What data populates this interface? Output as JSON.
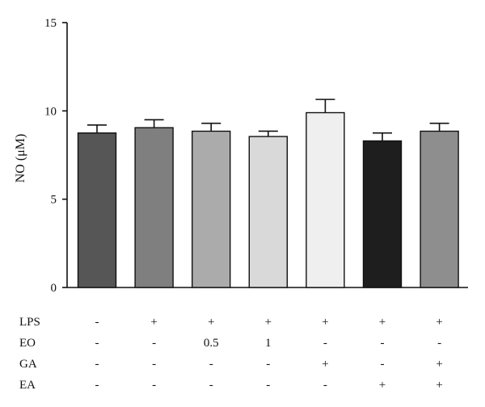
{
  "chart_data": {
    "type": "bar",
    "ylabel": "NO (μM)",
    "ylim": [
      0,
      15
    ],
    "yticks": [
      0,
      5,
      10,
      15
    ],
    "grid": false,
    "bars": [
      {
        "value": 8.75,
        "error": 0.45,
        "color": "#565656"
      },
      {
        "value": 9.05,
        "error": 0.45,
        "color": "#7f7f7f"
      },
      {
        "value": 8.85,
        "error": 0.45,
        "color": "#ababab"
      },
      {
        "value": 8.55,
        "error": 0.3,
        "color": "#d9d9d9"
      },
      {
        "value": 9.9,
        "error": 0.75,
        "color": "#efefef"
      },
      {
        "value": 8.3,
        "error": 0.45,
        "color": "#1e1e1e"
      },
      {
        "value": 8.85,
        "error": 0.45,
        "color": "#8e8e8e"
      }
    ],
    "treatment_rows": [
      {
        "label": "LPS",
        "cells": [
          "-",
          "+",
          "+",
          "+",
          "+",
          "+",
          "+"
        ]
      },
      {
        "label": "EO",
        "cells": [
          "-",
          "-",
          "0.5",
          "1",
          "-",
          "-",
          "-"
        ]
      },
      {
        "label": "GA",
        "cells": [
          "-",
          "-",
          "-",
          "-",
          "+",
          "-",
          "+"
        ]
      },
      {
        "label": "EA",
        "cells": [
          "-",
          "-",
          "-",
          "-",
          "-",
          "+",
          "+"
        ]
      }
    ]
  }
}
